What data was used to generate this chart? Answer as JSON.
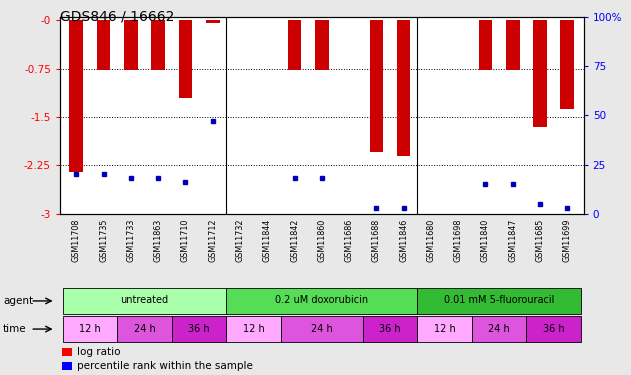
{
  "title": "GDS846 / 16662",
  "samples": [
    "GSM11708",
    "GSM11735",
    "GSM11733",
    "GSM11863",
    "GSM11710",
    "GSM11712",
    "GSM11732",
    "GSM11844",
    "GSM11842",
    "GSM11860",
    "GSM11686",
    "GSM11688",
    "GSM11846",
    "GSM11680",
    "GSM11698",
    "GSM11840",
    "GSM11847",
    "GSM11685",
    "GSM11699"
  ],
  "log_ratio": [
    -2.35,
    -0.78,
    -0.78,
    -0.78,
    -1.2,
    -0.05,
    0.0,
    0.0,
    -0.78,
    -0.78,
    0.0,
    -2.05,
    -2.1,
    0.0,
    0.0,
    -0.78,
    -0.78,
    -1.65,
    -1.38
  ],
  "percentile_rank": [
    20,
    20,
    18,
    18,
    16,
    47,
    0,
    0,
    18,
    18,
    0,
    3,
    3,
    0,
    0,
    15,
    15,
    5,
    3
  ],
  "ylim_left": [
    -3.0,
    0.05
  ],
  "ylim_right": [
    0,
    100
  ],
  "yticks_left": [
    0,
    -0.75,
    -1.5,
    -2.25,
    -3.0
  ],
  "yticks_left_labels": [
    "-0",
    "-0.75",
    "-1.5",
    "-2.25",
    "-3"
  ],
  "yticks_right": [
    0,
    25,
    50,
    75,
    100
  ],
  "yticks_right_labels": [
    "0",
    "25",
    "50",
    "75",
    "100%"
  ],
  "bar_color": "#cc0000",
  "dot_color": "#0000bb",
  "agent_groups": [
    {
      "label": "untreated",
      "start": 0,
      "end": 6,
      "color": "#aaffaa"
    },
    {
      "label": "0.2 uM doxorubicin",
      "start": 6,
      "end": 13,
      "color": "#55dd55"
    },
    {
      "label": "0.01 mM 5-fluorouracil",
      "start": 13,
      "end": 19,
      "color": "#33bb33"
    }
  ],
  "time_groups": [
    {
      "label": "12 h",
      "start": 0,
      "end": 2,
      "color": "#ffaaff"
    },
    {
      "label": "24 h",
      "start": 2,
      "end": 4,
      "color": "#dd55dd"
    },
    {
      "label": "36 h",
      "start": 4,
      "end": 6,
      "color": "#cc22cc"
    },
    {
      "label": "12 h",
      "start": 6,
      "end": 8,
      "color": "#ffaaff"
    },
    {
      "label": "24 h",
      "start": 8,
      "end": 11,
      "color": "#dd55dd"
    },
    {
      "label": "36 h",
      "start": 11,
      "end": 13,
      "color": "#cc22cc"
    },
    {
      "label": "12 h",
      "start": 13,
      "end": 15,
      "color": "#ffaaff"
    },
    {
      "label": "24 h",
      "start": 15,
      "end": 17,
      "color": "#dd55dd"
    },
    {
      "label": "36 h",
      "start": 17,
      "end": 19,
      "color": "#cc22cc"
    }
  ],
  "bar_width": 0.5,
  "background_color": "#e8e8e8",
  "plot_bg_color": "#ffffff",
  "n_samples": 19
}
